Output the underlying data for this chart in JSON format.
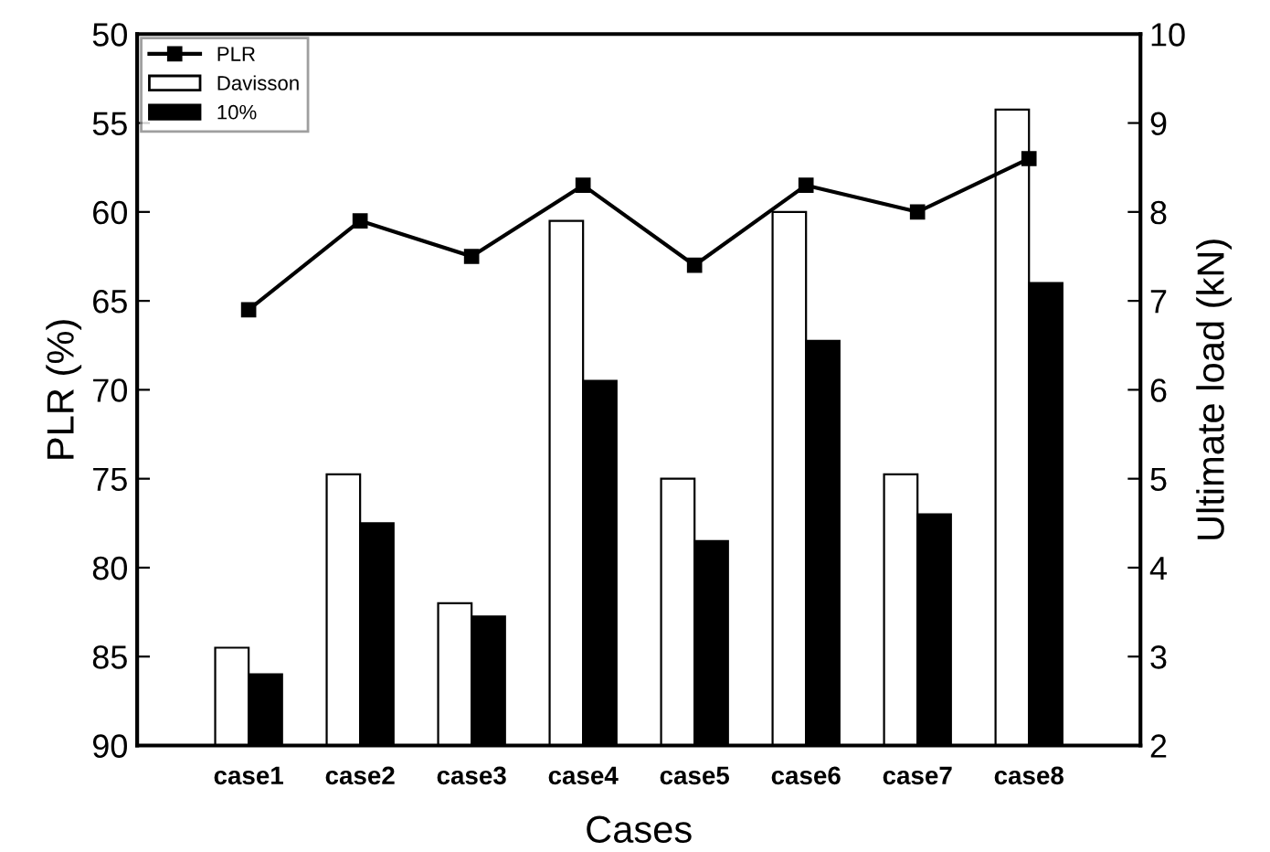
{
  "chart_data": {
    "type": "bar",
    "xlabel": "Cases",
    "ylabel": "PLR (%)",
    "y2label": "Ultimate load (kN)",
    "categories": [
      "case1",
      "case2",
      "case3",
      "case4",
      "case5",
      "case6",
      "case7",
      "case8"
    ],
    "series": [
      {
        "name": "PLR",
        "type": "line",
        "color": "#000000",
        "values": [
          65.5,
          60.5,
          62.5,
          58.5,
          63,
          58.5,
          60,
          57
        ],
        "marker": "square"
      },
      {
        "name": "Davisson",
        "axis": "y2",
        "color": "#ffffff",
        "values": [
          3.1,
          5.05,
          3.6,
          7.9,
          5.0,
          8.0,
          5.05,
          9.15
        ]
      },
      {
        "name": "10%",
        "axis": "y2",
        "color": "#000000",
        "values": [
          2.8,
          4.5,
          3.45,
          6.1,
          4.3,
          6.55,
          4.6,
          7.2
        ]
      }
    ],
    "ylim": [
      90,
      50
    ],
    "yticks": [
      90,
      85,
      80,
      75,
      70,
      65,
      60,
      55,
      50
    ],
    "y2lim": [
      2,
      10
    ],
    "y2ticks": [
      2,
      3,
      4,
      5,
      6,
      7,
      8,
      9,
      10
    ],
    "legend": "top left",
    "grid": false
  }
}
